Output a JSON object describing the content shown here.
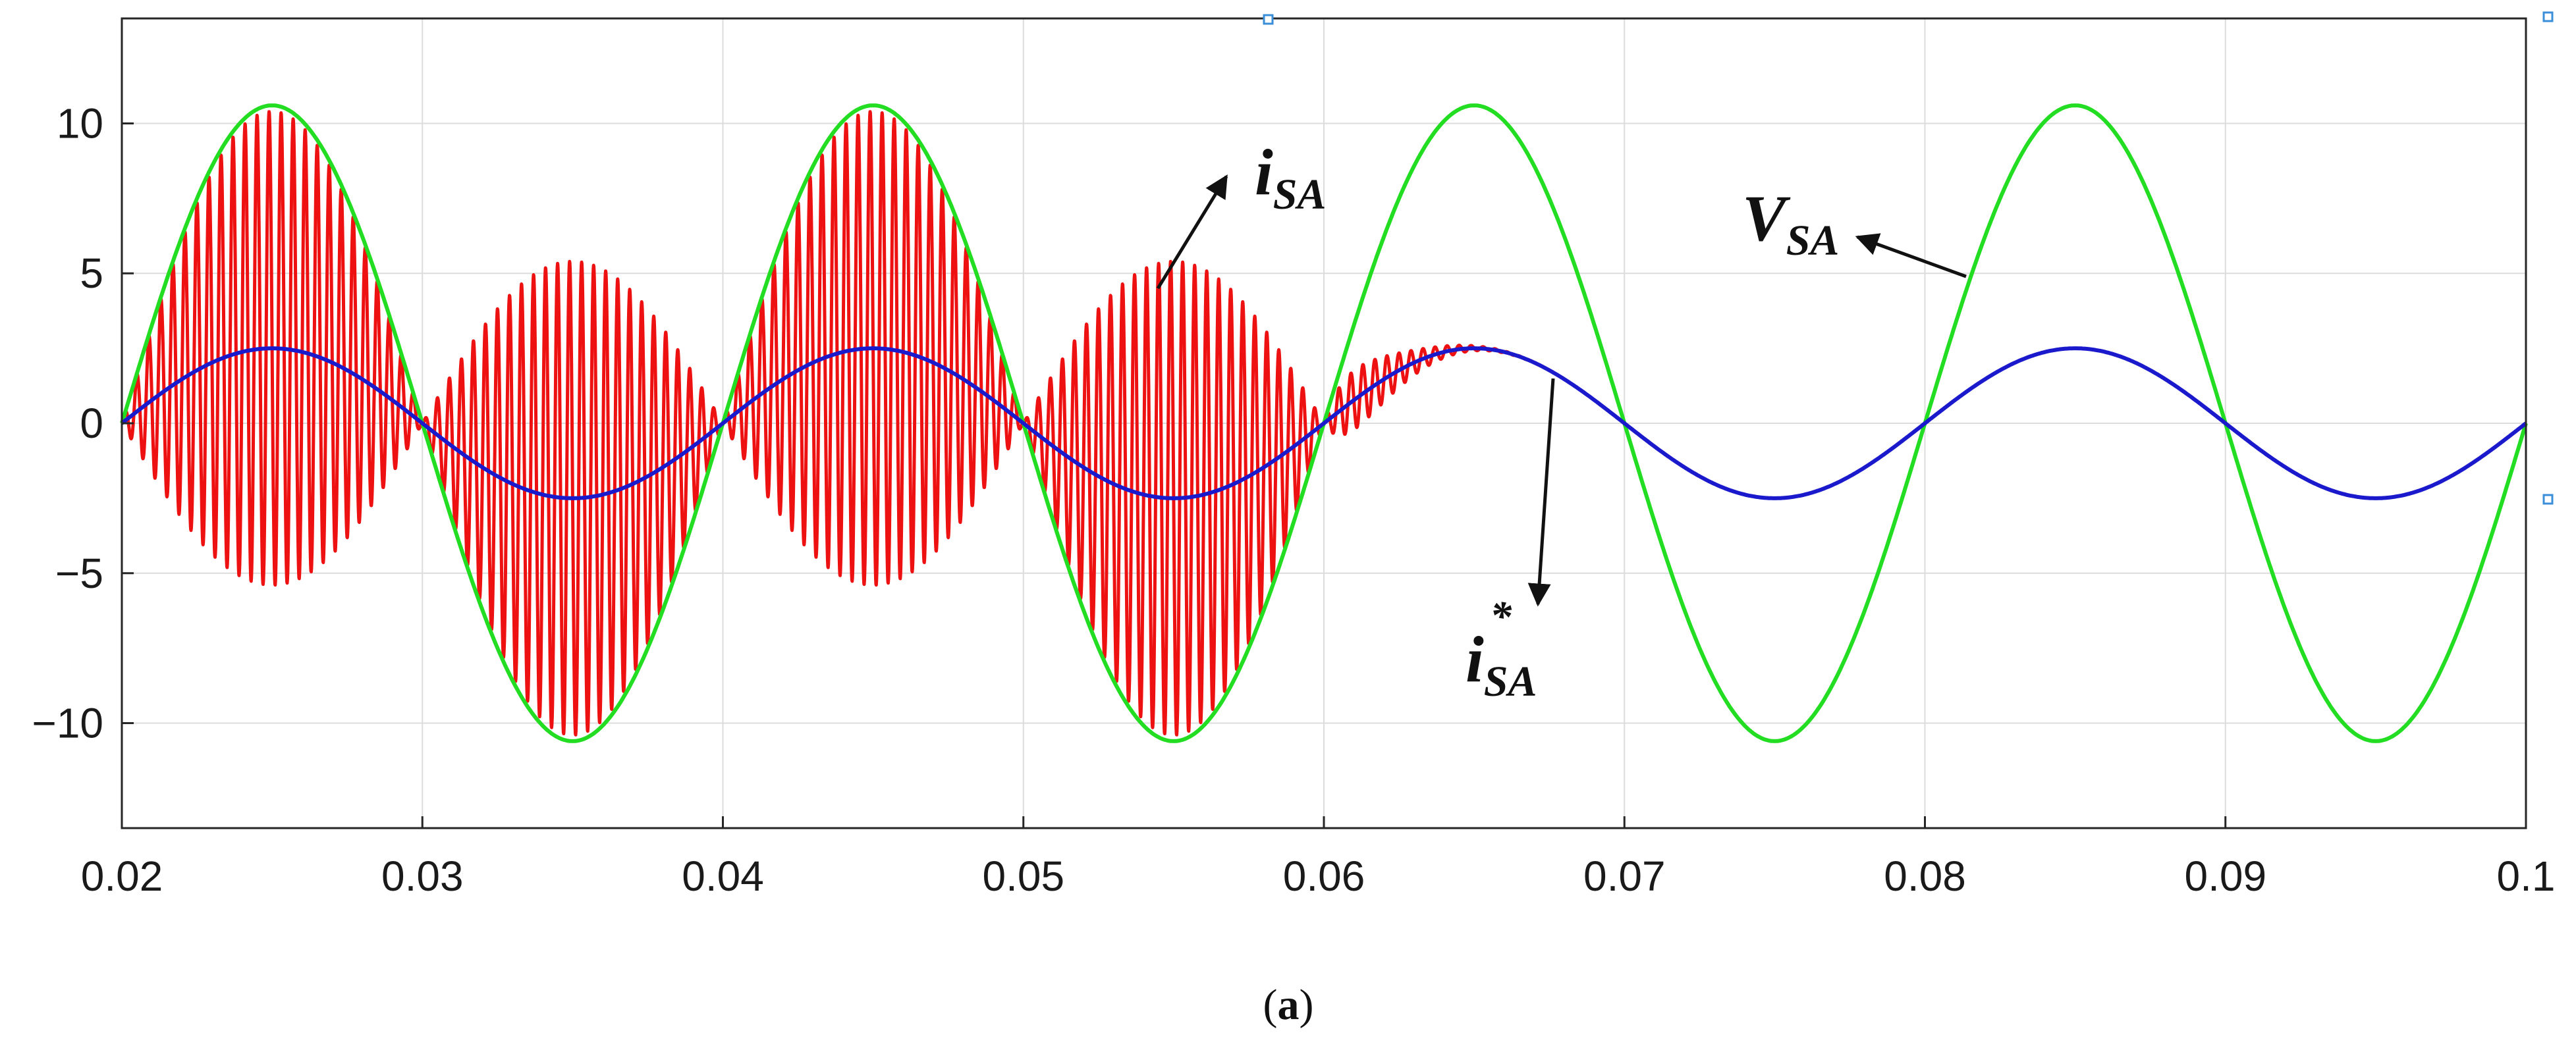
{
  "chart_data": {
    "type": "line",
    "title": "",
    "xlabel": "",
    "ylabel": "",
    "xlim": [
      0.02,
      0.1
    ],
    "ylim": [
      -13.5,
      13.5
    ],
    "grid": true,
    "x_ticks": [
      0.02,
      0.03,
      0.04,
      0.05,
      0.06,
      0.07,
      0.08,
      0.09,
      0.1
    ],
    "x_tick_labels": [
      "0.02",
      "0.03",
      "0.04",
      "0.05",
      "0.06",
      "0.07",
      "0.08",
      "0.09",
      "0.1"
    ],
    "y_ticks": [
      -10,
      -5,
      0,
      5,
      10
    ],
    "y_tick_labels": [
      "−10",
      "−5",
      "0",
      "5",
      "10"
    ],
    "series": [
      {
        "name": "V_SA",
        "color": "#22dd22",
        "frequency_hz": 50,
        "amplitude": 10.6,
        "phase_zero_at": 0.02
      },
      {
        "name": "i_SA",
        "color": "#ee1111",
        "fundamental_amplitude": 2.5,
        "switching_ripple_amplitude": 7.9,
        "switching_frequency_hz": 2500,
        "ripple_active_until": 0.06,
        "peak_samples": [
          {
            "x": 0.025,
            "y": 9.5
          },
          {
            "x": 0.035,
            "y": 5.3
          },
          {
            "x": 0.045,
            "y": 10.5
          },
          {
            "x": 0.055,
            "y": 5.3
          },
          {
            "x": 0.065,
            "y": 2.6
          }
        ]
      },
      {
        "name": "i*_SA",
        "color": "#1a1acc",
        "frequency_hz": 50,
        "amplitude": 2.5,
        "phase_zero_at": 0.02
      }
    ],
    "annotations": [
      {
        "base": "i",
        "sub": "SA",
        "sup": "",
        "points_to_series": "i_SA"
      },
      {
        "base": "V",
        "sub": "SA",
        "sup": "",
        "points_to_series": "V_SA"
      },
      {
        "base": "i",
        "sub": "SA",
        "sup": "*",
        "points_to_series": "i*_SA"
      }
    ]
  },
  "caption": {
    "open": "(",
    "letter": "a",
    "close": ")"
  }
}
